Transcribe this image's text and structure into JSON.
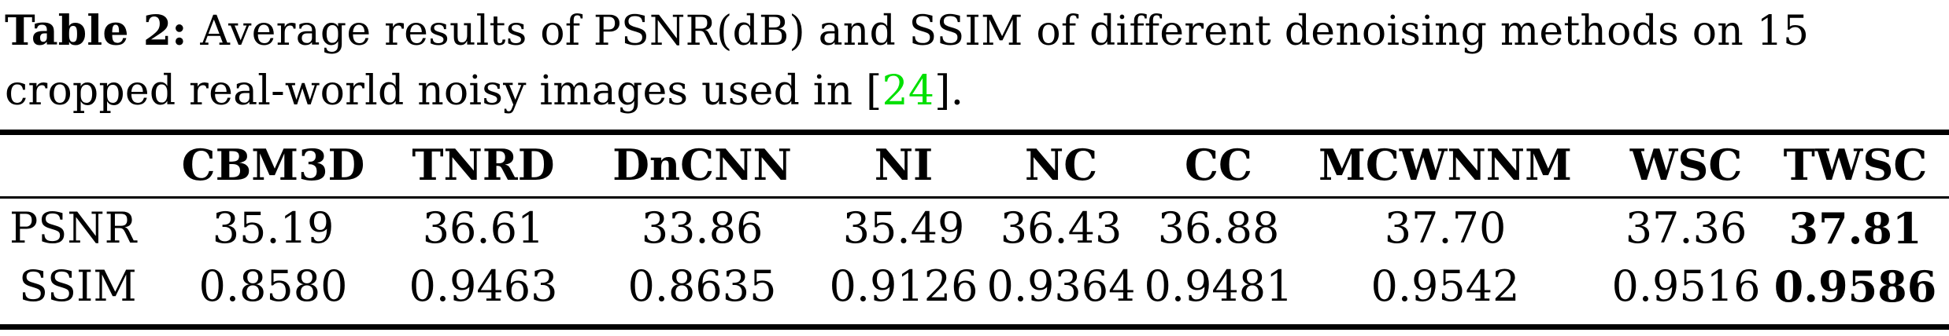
{
  "caption": {
    "label": "Table 2:",
    "text": " Average results of PSNR(dB) and SSIM of different denoising methods on 15 cropped real-world noisy images used in [",
    "citation": "24",
    "end": "]."
  },
  "table": {
    "columns": [
      "CBM3D",
      "TNRD",
      "DnCNN",
      "NI",
      "NC",
      "CC",
      "MCWNNM",
      "WSC",
      "TWSC"
    ],
    "rows": [
      {
        "label": "PSNR",
        "values": [
          "35.19",
          "36.61",
          "33.86",
          "35.49",
          "36.43",
          "36.88",
          "37.70",
          "37.36",
          "37.81"
        ],
        "best_index": 8
      },
      {
        "label": "SSIM",
        "values": [
          "0.8580",
          "0.9463",
          "0.8635",
          "0.9126",
          "0.9364",
          "0.9481",
          "0.9542",
          "0.9516",
          "0.9586"
        ],
        "best_index": 8
      }
    ]
  }
}
